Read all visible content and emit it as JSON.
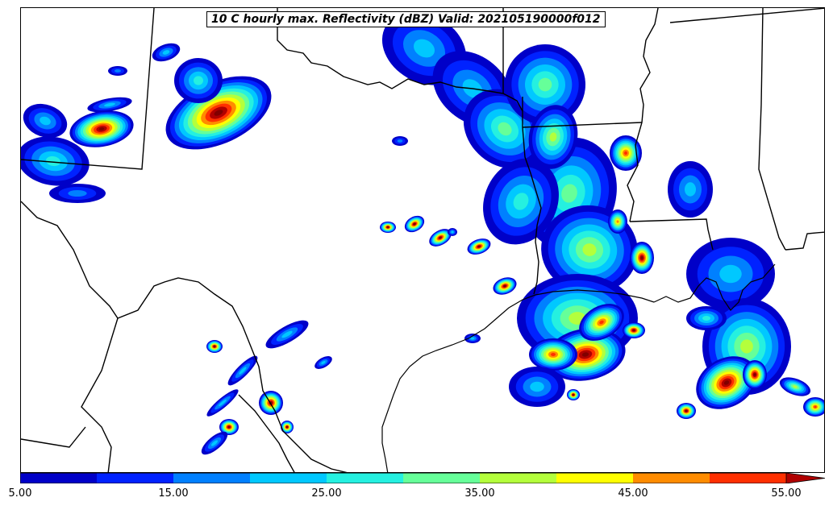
{
  "title": "10 C hourly max. Reflectivity (dBZ) Valid: 202105190000f012",
  "colorbar": {
    "levels": [
      5,
      10,
      15,
      20,
      25,
      30,
      35,
      40,
      45,
      50,
      55
    ],
    "colors": [
      "#0000c8",
      "#0022ff",
      "#0080ff",
      "#00c8ff",
      "#25f0e0",
      "#66ff99",
      "#b4ff3c",
      "#ffff00",
      "#ff8c00",
      "#ff3000",
      "#b00000",
      "#800000"
    ],
    "tick_labels": [
      "5.00",
      "15.00",
      "25.00",
      "35.00",
      "45.00",
      "55.00"
    ],
    "extend": "max"
  }
}
